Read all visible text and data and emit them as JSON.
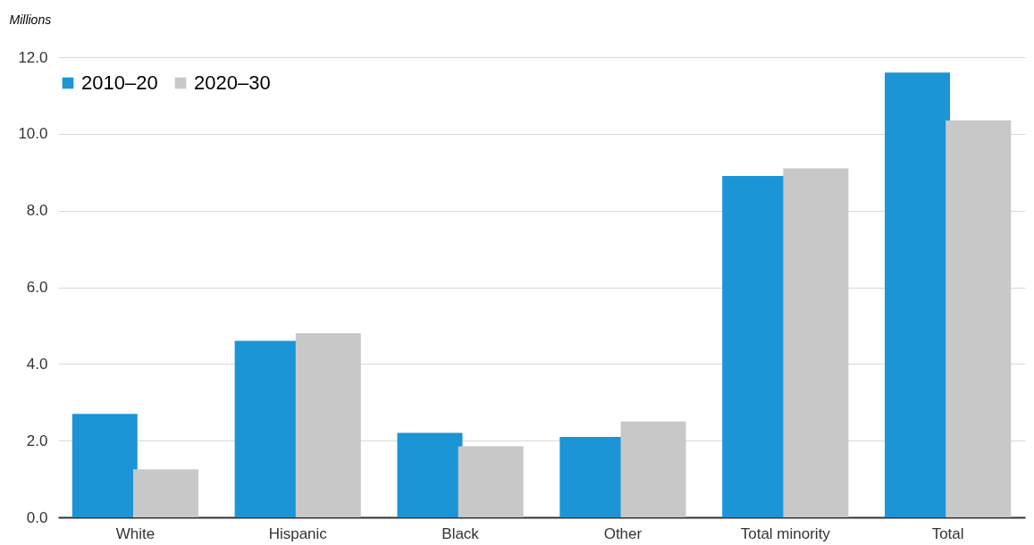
{
  "chart_data": {
    "type": "bar",
    "ylabel": "Millions",
    "categories": [
      "White",
      "Hispanic",
      "Black",
      "Other",
      "Total minority",
      "Total"
    ],
    "series": [
      {
        "name": "2010–20",
        "color": "#1b95d6",
        "values": [
          2.7,
          4.6,
          2.2,
          2.1,
          8.9,
          11.6
        ]
      },
      {
        "name": "2020–30",
        "color": "#c8c8c8",
        "values": [
          1.25,
          4.8,
          1.85,
          2.5,
          9.1,
          10.35
        ]
      }
    ],
    "ylim": [
      0,
      12
    ],
    "yticks": [
      {
        "value": 0,
        "label": "0.0"
      },
      {
        "value": 2,
        "label": "2.0"
      },
      {
        "value": 4,
        "label": "4.0"
      },
      {
        "value": 6,
        "label": "6.0"
      },
      {
        "value": 8,
        "label": "8.0"
      },
      {
        "value": 10,
        "label": "10.0"
      },
      {
        "value": 12,
        "label": "12.0"
      }
    ],
    "grid": "y",
    "legend": "top"
  }
}
